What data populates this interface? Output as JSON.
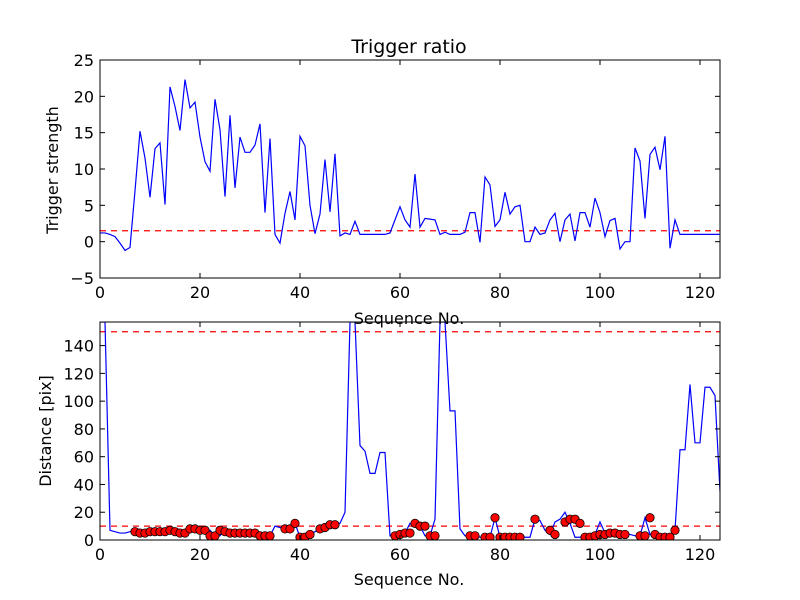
{
  "colors": {
    "line": "#0000ff",
    "reference": "#ff0000",
    "marker": "#ff0000"
  },
  "chart_data": [
    {
      "type": "line",
      "title": "Trigger ratio",
      "xlabel": "Sequence No.",
      "ylabel": "Trigger strength",
      "xlim": [
        0,
        124
      ],
      "ylim": [
        -5,
        25
      ],
      "xticks": [
        0,
        20,
        40,
        60,
        80,
        100,
        120
      ],
      "yticks": [
        -5,
        0,
        5,
        10,
        15,
        20,
        25
      ],
      "grid": false,
      "reference_lines": [
        1.5
      ],
      "x": [
        0,
        1,
        2,
        3,
        4,
        5,
        6,
        7,
        8,
        9,
        10,
        11,
        12,
        13,
        14,
        15,
        16,
        17,
        18,
        19,
        20,
        21,
        22,
        23,
        24,
        25,
        26,
        27,
        28,
        29,
        30,
        31,
        32,
        33,
        34,
        35,
        36,
        37,
        38,
        39,
        40,
        41,
        42,
        43,
        44,
        45,
        46,
        47,
        48,
        49,
        50,
        51,
        52,
        53,
        54,
        55,
        56,
        57,
        58,
        59,
        60,
        61,
        62,
        63,
        64,
        65,
        66,
        67,
        68,
        69,
        70,
        71,
        72,
        73,
        74,
        75,
        76,
        77,
        78,
        79,
        80,
        81,
        82,
        83,
        84,
        85,
        86,
        87,
        88,
        89,
        90,
        91,
        92,
        93,
        94,
        95,
        96,
        97,
        98,
        99,
        100,
        101,
        102,
        103,
        104,
        105,
        106,
        107,
        108,
        109,
        110,
        111,
        112,
        113,
        114,
        115,
        116,
        117,
        118,
        119,
        120,
        121,
        122,
        123,
        124
      ],
      "y": [
        1.2,
        1.2,
        1.0,
        0.7,
        -0.2,
        -1.2,
        -0.8,
        7.0,
        15.2,
        11.5,
        6.1,
        12.8,
        13.6,
        5.1,
        21.3,
        18.6,
        15.3,
        22.3,
        18.4,
        19.2,
        14.4,
        11.0,
        9.7,
        19.6,
        15.4,
        6.2,
        17.4,
        7.4,
        14.4,
        12.3,
        12.3,
        13.3,
        16.2,
        4.0,
        14.2,
        1.0,
        -0.2,
        3.9,
        6.9,
        3.0,
        14.5,
        13.2,
        5.0,
        1.1,
        3.8,
        11.3,
        4.1,
        12.1,
        0.8,
        1.2,
        1.0,
        2.8,
        1.0,
        1.0,
        1.0,
        1.0,
        1.0,
        1.0,
        1.2,
        3.0,
        4.8,
        3.0,
        2.0,
        9.3,
        2.0,
        3.2,
        3.1,
        3.0,
        1.0,
        1.3,
        1.0,
        1.0,
        1.0,
        1.3,
        4.0,
        4.0,
        -0.1,
        8.9,
        7.8,
        2.1,
        3.0,
        6.8,
        3.8,
        4.8,
        5.0,
        0.0,
        0.0,
        2.0,
        1.0,
        1.2,
        3.0,
        3.9,
        0.0,
        3.0,
        3.8,
        0.1,
        4.0,
        4.0,
        2.0,
        6.0,
        4.0,
        0.7,
        2.9,
        3.2,
        -1.0,
        0.0,
        0.0,
        12.9,
        11.1,
        3.2,
        12.0,
        13.0,
        9.9,
        14.5,
        -0.9,
        3.0,
        1.0,
        1.0,
        1.0,
        1.0,
        1.0,
        1.0,
        1.0,
        1.0,
        1.0
      ]
    },
    {
      "type": "line",
      "title": "",
      "xlabel": "Sequence No.",
      "ylabel": "Distance [pix]",
      "xlim": [
        0,
        124
      ],
      "ylim": [
        0,
        157
      ],
      "xticks": [
        0,
        20,
        40,
        60,
        80,
        100,
        120
      ],
      "yticks": [
        0,
        20,
        40,
        60,
        80,
        100,
        120,
        140
      ],
      "grid": false,
      "reference_lines": [
        10,
        150
      ],
      "x": [
        0,
        0.5,
        1,
        2,
        3,
        4,
        5,
        6,
        7,
        8,
        9,
        10,
        11,
        12,
        13,
        14,
        15,
        16,
        17,
        18,
        19,
        20,
        21,
        22,
        23,
        24,
        25,
        26,
        27,
        28,
        29,
        30,
        31,
        32,
        33,
        34,
        35,
        36,
        37,
        38,
        39,
        40,
        41,
        42,
        43,
        44,
        45,
        46,
        47,
        48,
        49,
        50,
        51,
        52,
        53,
        54,
        55,
        56,
        57,
        58,
        59,
        60,
        61,
        62,
        63,
        64,
        65,
        66,
        67,
        68,
        69,
        70,
        71,
        72,
        73,
        74,
        75,
        76,
        77,
        78,
        79,
        80,
        81,
        82,
        83,
        84,
        85,
        86,
        87,
        88,
        89,
        90,
        91,
        92,
        93,
        94,
        95,
        96,
        97,
        98,
        99,
        100,
        101,
        102,
        103,
        104,
        105,
        106,
        107,
        108,
        109,
        110,
        111,
        112,
        113,
        114,
        115,
        116,
        117,
        118,
        119,
        120,
        121,
        122,
        123,
        124
      ],
      "y": [
        157,
        157,
        157,
        7,
        6,
        5,
        5,
        6,
        7,
        6,
        5,
        5,
        6,
        6,
        6,
        6,
        7,
        6,
        5,
        5,
        8,
        8,
        7,
        7,
        3,
        3,
        7,
        6,
        5,
        5,
        5,
        5,
        5,
        5,
        3,
        3,
        10,
        9,
        8,
        8,
        12,
        2,
        2,
        4,
        6,
        8,
        9,
        11,
        11,
        12,
        20,
        157,
        157,
        68,
        64,
        48,
        48,
        63,
        63,
        3,
        4,
        5,
        5,
        12,
        10,
        10,
        3,
        3,
        15,
        157,
        157,
        93,
        93,
        8,
        3,
        3,
        4,
        2,
        2,
        2,
        16,
        2,
        2,
        2,
        2,
        2,
        2,
        2,
        15,
        14,
        7,
        4,
        13,
        15,
        20,
        12,
        2,
        2,
        3,
        4,
        4,
        13,
        5,
        5,
        4,
        4,
        5,
        4,
        3,
        3,
        16,
        4,
        2,
        2,
        2,
        2,
        7,
        65,
        65,
        112,
        70,
        70,
        110,
        110,
        104,
        35
      ],
      "marker_x": [
        7,
        8,
        9,
        10,
        11,
        12,
        13,
        14,
        15,
        16,
        17,
        18,
        19,
        20,
        21,
        22,
        23,
        24,
        25,
        26,
        27,
        28,
        29,
        30,
        31,
        32,
        33,
        34,
        37,
        38,
        39,
        40,
        41,
        42,
        44,
        45,
        46,
        47,
        59,
        60,
        61,
        62,
        63,
        64,
        65,
        66,
        67,
        74,
        75,
        77,
        78,
        79,
        80,
        81,
        82,
        83,
        84,
        87,
        90,
        91,
        93,
        94,
        95,
        96,
        97,
        98,
        99,
        100,
        101,
        102,
        103,
        104,
        105,
        108,
        109,
        110,
        111,
        112,
        113,
        114,
        115
      ],
      "marker_y": [
        6,
        5,
        5,
        6,
        6,
        6,
        6,
        7,
        6,
        5,
        5,
        8,
        8,
        7,
        7,
        3,
        3,
        7,
        6,
        5,
        5,
        5,
        5,
        5,
        5,
        3,
        3,
        3,
        8,
        8,
        12,
        2,
        2,
        4,
        8,
        9,
        11,
        11,
        3,
        4,
        5,
        5,
        12,
        10,
        10,
        3,
        3,
        3,
        3,
        2,
        2,
        16,
        2,
        2,
        2,
        2,
        2,
        15,
        7,
        4,
        13,
        15,
        15,
        12,
        2,
        2,
        3,
        4,
        4,
        5,
        5,
        4,
        4,
        3,
        3,
        16,
        4,
        2,
        2,
        2,
        7
      ]
    }
  ]
}
